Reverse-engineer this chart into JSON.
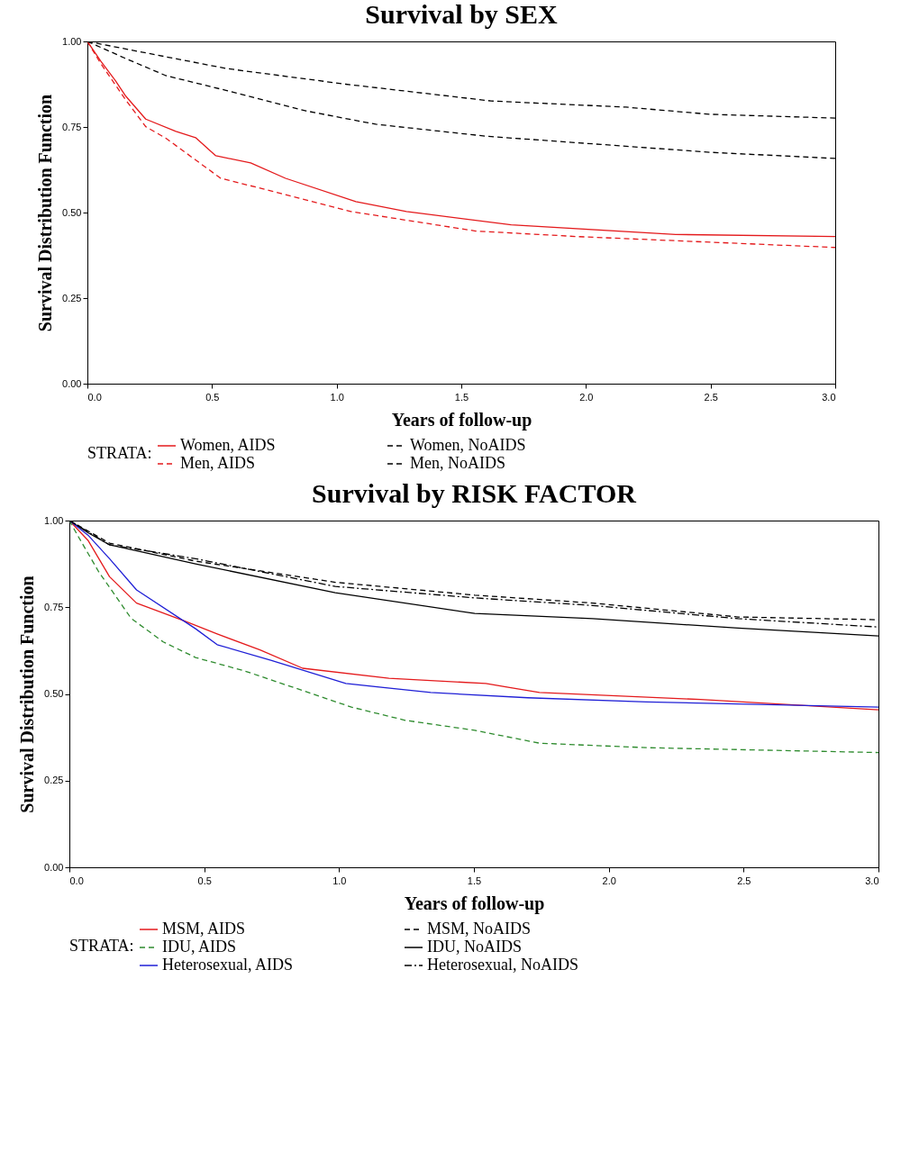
{
  "chart_data": [
    {
      "type": "line",
      "title": "Survival by SEX",
      "xlabel": "Years of  follow-up",
      "ylabel": "Survival Distribution Function",
      "legend_title": "STRATA:",
      "legend": "bottom",
      "grid": false,
      "xlim": [
        0,
        3
      ],
      "ylim": [
        0,
        1
      ],
      "xticks": [
        {
          "value": 0,
          "label": "0.0"
        },
        {
          "value": 0.5,
          "label": "0.5"
        },
        {
          "value": 1,
          "label": "1.0"
        },
        {
          "value": 1.5,
          "label": "1.5"
        },
        {
          "value": 2,
          "label": "2.0"
        },
        {
          "value": 2.5,
          "label": "2.5"
        },
        {
          "value": 3,
          "label": "3.0"
        }
      ],
      "yticks": [
        {
          "value": 0,
          "label": "0.00"
        },
        {
          "value": 0.25,
          "label": "0.25"
        },
        {
          "value": 0.5,
          "label": "0.50"
        },
        {
          "value": 0.75,
          "label": "0.75"
        },
        {
          "value": 1,
          "label": "1.00"
        }
      ],
      "series": [
        {
          "name": "Women, AIDS",
          "color": "#e41a1c",
          "line_style": "solid",
          "x": [
            0,
            0.053,
            0.112,
            0.154,
            0.234,
            0.355,
            0.434,
            0.515,
            0.655,
            0.795,
            1.077,
            1.28,
            1.7,
            2.36,
            3.0
          ],
          "values": [
            1,
            0.943,
            0.886,
            0.84,
            0.773,
            0.737,
            0.719,
            0.666,
            0.645,
            0.6,
            0.532,
            0.503,
            0.464,
            0.436,
            0.43
          ]
        },
        {
          "name": "Women, NoAIDS",
          "color": "#000000",
          "line_style": "dashed",
          "x": [
            0,
            0.154,
            0.556,
            1.037,
            1.62,
            2.16,
            2.5,
            3.0
          ],
          "values": [
            1,
            0.978,
            0.921,
            0.875,
            0.826,
            0.808,
            0.787,
            0.776
          ]
        },
        {
          "name": "Men, AIDS",
          "color": "#e41a1c",
          "line_style": "dashed",
          "x": [
            0,
            0.053,
            0.154,
            0.234,
            0.315,
            0.535,
            0.755,
            1.057,
            1.558,
            1.96,
            3.0
          ],
          "values": [
            1,
            0.936,
            0.829,
            0.751,
            0.717,
            0.6,
            0.56,
            0.503,
            0.446,
            0.43,
            0.398
          ]
        },
        {
          "name": "Men, NoAIDS",
          "color": "#000000",
          "line_style": "dashed",
          "x": [
            0,
            0.154,
            0.315,
            0.556,
            0.877,
            1.157,
            1.6,
            2.06,
            2.5,
            3.0
          ],
          "values": [
            1,
            0.95,
            0.9,
            0.857,
            0.797,
            0.758,
            0.723,
            0.699,
            0.676,
            0.658
          ]
        }
      ]
    },
    {
      "type": "line",
      "title": "Survival by RISK FACTOR",
      "xlabel": "Years of  follow-up",
      "ylabel": "Survival Distribution Function",
      "legend_title": "STRATA:",
      "legend": "bottom",
      "grid": false,
      "xlim": [
        0,
        3
      ],
      "ylim": [
        0,
        1
      ],
      "xticks": [
        {
          "value": 0,
          "label": "0.0"
        },
        {
          "value": 0.5,
          "label": "0.5"
        },
        {
          "value": 1,
          "label": "1.0"
        },
        {
          "value": 1.5,
          "label": "1.5"
        },
        {
          "value": 2,
          "label": "2.0"
        },
        {
          "value": 2.5,
          "label": "2.5"
        },
        {
          "value": 3,
          "label": "3.0"
        }
      ],
      "yticks": [
        {
          "value": 0,
          "label": "0.00"
        },
        {
          "value": 0.25,
          "label": "0.25"
        },
        {
          "value": 0.5,
          "label": "0.50"
        },
        {
          "value": 0.75,
          "label": "0.75"
        },
        {
          "value": 1,
          "label": "1.00"
        }
      ],
      "series": [
        {
          "name": "MSM, AIDS",
          "color": "#e41a1c",
          "line_style": "solid",
          "x": [
            0,
            0.069,
            0.149,
            0.249,
            0.428,
            0.548,
            0.707,
            0.865,
            1.185,
            1.544,
            1.743,
            2.34,
            3.0
          ],
          "values": [
            1,
            0.943,
            0.838,
            0.762,
            0.71,
            0.673,
            0.627,
            0.574,
            0.545,
            0.53,
            0.504,
            0.484,
            0.454
          ]
        },
        {
          "name": "MSM, NoAIDS",
          "color": "#000000",
          "line_style": "dashed",
          "x": [
            0,
            0.149,
            0.468,
            0.986,
            1.503,
            1.94,
            2.48,
            3.0
          ],
          "values": [
            1,
            0.935,
            0.883,
            0.822,
            0.785,
            0.762,
            0.722,
            0.714
          ]
        },
        {
          "name": "IDU, AIDS",
          "color": "#2e8b2e",
          "line_style": "dashed",
          "x": [
            0,
            0.03,
            0.109,
            0.229,
            0.348,
            0.468,
            0.647,
            0.845,
            1.046,
            1.245,
            1.503,
            1.743,
            2.14,
            3.0
          ],
          "values": [
            1,
            0.958,
            0.852,
            0.718,
            0.65,
            0.605,
            0.567,
            0.515,
            0.462,
            0.424,
            0.395,
            0.358,
            0.345,
            0.331
          ]
        },
        {
          "name": "IDU, NoAIDS",
          "color": "#000000",
          "line_style": "solid",
          "x": [
            0,
            0.069,
            0.149,
            0.468,
            0.986,
            1.503,
            1.94,
            2.48,
            3.0
          ],
          "values": [
            1,
            0.965,
            0.93,
            0.875,
            0.792,
            0.732,
            0.717,
            0.69,
            0.667
          ]
        },
        {
          "name": "Heterosexual, AIDS",
          "color": "#1f1fd6",
          "line_style": "solid",
          "x": [
            0,
            0.069,
            0.149,
            0.249,
            0.468,
            0.548,
            0.747,
            1.025,
            1.34,
            1.7,
            2.14,
            3.0
          ],
          "values": [
            1,
            0.958,
            0.89,
            0.8,
            0.688,
            0.642,
            0.597,
            0.53,
            0.504,
            0.489,
            0.477,
            0.462
          ]
        },
        {
          "name": "Heterosexual, NoAIDS",
          "color": "#000000",
          "line_style": "dotted",
          "x": [
            0,
            0.149,
            0.468,
            0.986,
            1.503,
            1.94,
            2.48,
            3.0
          ],
          "values": [
            1,
            0.93,
            0.89,
            0.81,
            0.777,
            0.755,
            0.717,
            0.693
          ]
        }
      ]
    }
  ]
}
